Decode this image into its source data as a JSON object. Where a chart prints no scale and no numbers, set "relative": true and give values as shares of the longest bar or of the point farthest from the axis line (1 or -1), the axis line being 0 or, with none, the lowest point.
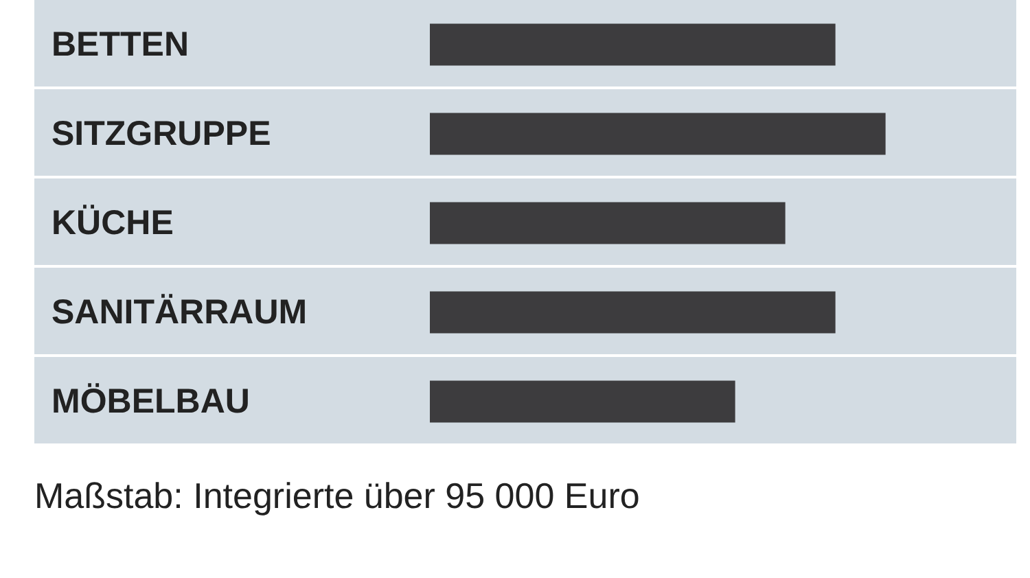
{
  "chart_data": {
    "type": "bar",
    "orientation": "horizontal",
    "relative": true,
    "categories": [
      "BETTEN",
      "SITZGRUPPE",
      "KÜCHE",
      "SANITÄRRAUM",
      "MÖBELBAU"
    ],
    "values": [
      0.89,
      1,
      0.78,
      0.89,
      0.67
    ],
    "color": "#3d3c3e",
    "annotations": [
      "Maßstab: Integrierte über 95 000 Euro"
    ]
  }
}
